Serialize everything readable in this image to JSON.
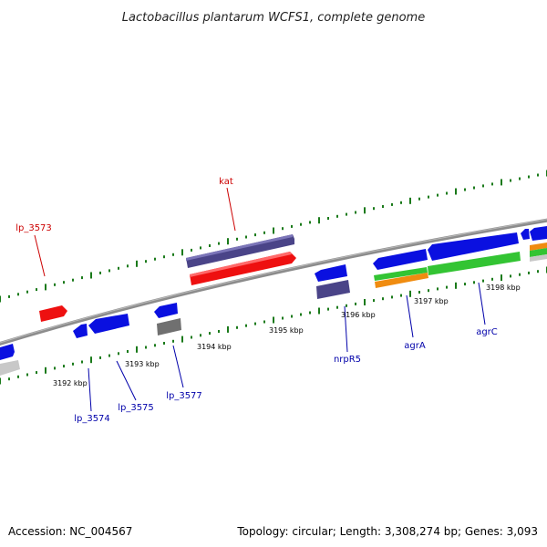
{
  "title": "Lactobacillus plantarum WCFS1, complete genome",
  "footer": {
    "accession": "Accession: NC_004567",
    "summary": "Topology: circular; Length: 3,308,274 bp; Genes: 3,093"
  },
  "colors": {
    "backbone": "#8c8c8c",
    "tick": "#1a7a1a",
    "label_top": "#cc0000",
    "label_bottom": "#0000aa",
    "leader_top": "#cc0000",
    "leader_bottom": "#0000aa",
    "blue_gene": "#0a10e0",
    "red_gene": "#ee1010",
    "purple_gene": "#4a4488",
    "gray_gene": "#707070",
    "green_gene": "#33c433",
    "orange_gene": "#f08c10",
    "lightgray_gene": "#c8c8c8"
  },
  "ticks": {
    "labels": [
      {
        "kbp": 3192,
        "text": "3192 kbp"
      },
      {
        "kbp": 3193,
        "text": "3193 kbp"
      },
      {
        "kbp": 3194,
        "text": "3194 kbp"
      },
      {
        "kbp": 3195,
        "text": "3195 kbp"
      },
      {
        "kbp": 3196,
        "text": "3196 kbp"
      },
      {
        "kbp": 3197,
        "text": "3197 kbp"
      },
      {
        "kbp": 3198,
        "text": "3198 kbp"
      }
    ]
  },
  "gene_labels": [
    {
      "text": "lp_3573",
      "side": "top"
    },
    {
      "text": "kat",
      "side": "top"
    },
    {
      "text": "lp_3574",
      "side": "bottom"
    },
    {
      "text": "lp_3575",
      "side": "bottom"
    },
    {
      "text": "lp_3577",
      "side": "bottom"
    },
    {
      "text": "nrpR5",
      "side": "bottom"
    },
    {
      "text": "agrA",
      "side": "bottom"
    },
    {
      "text": "agrC",
      "side": "bottom"
    }
  ]
}
